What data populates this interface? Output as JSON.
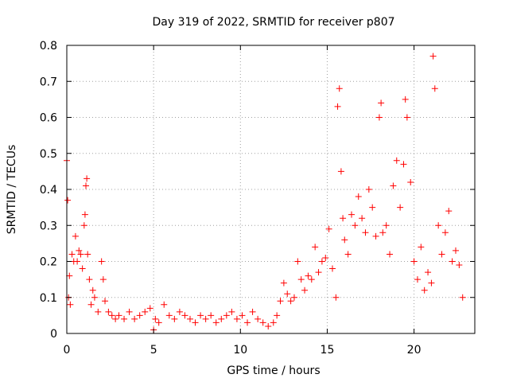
{
  "chart_data": {
    "type": "scatter",
    "title": "Day 319 of 2022, SRMTID for receiver p807",
    "xlabel": "GPS time / hours",
    "ylabel": "SRMTID / TECUs",
    "xlim": [
      0,
      23.5
    ],
    "ylim": [
      0,
      0.8
    ],
    "x_ticks": [
      0,
      5,
      10,
      15,
      20
    ],
    "x_tick_labels": [
      "0",
      "5",
      "10",
      "15",
      "20"
    ],
    "y_ticks": [
      0,
      0.1,
      0.2,
      0.3,
      0.4,
      0.5,
      0.6,
      0.7,
      0.8
    ],
    "y_tick_labels": [
      "0",
      "0.1",
      "0.2",
      "0.3",
      "0.4",
      "0.5",
      "0.6",
      "0.7",
      "0.8"
    ],
    "grid": true,
    "marker": "+",
    "color": "#ff0000",
    "series": [
      {
        "name": "SRMTID",
        "x": [
          0.0,
          0.05,
          0.1,
          0.15,
          0.2,
          0.3,
          0.4,
          0.5,
          0.6,
          0.7,
          0.8,
          0.9,
          1.0,
          1.05,
          1.1,
          1.15,
          1.2,
          1.3,
          1.4,
          1.5,
          1.6,
          1.8,
          2.0,
          2.1,
          2.2,
          2.4,
          2.6,
          2.8,
          3.0,
          3.3,
          3.6,
          3.9,
          4.2,
          4.5,
          4.8,
          5.0,
          5.1,
          5.3,
          5.6,
          5.9,
          6.2,
          6.5,
          6.8,
          7.1,
          7.4,
          7.7,
          8.0,
          8.3,
          8.6,
          8.9,
          9.2,
          9.5,
          9.8,
          10.1,
          10.4,
          10.7,
          11.0,
          11.3,
          11.6,
          11.9,
          12.1,
          12.3,
          12.5,
          12.7,
          12.9,
          13.1,
          13.3,
          13.5,
          13.7,
          13.9,
          14.1,
          14.3,
          14.5,
          14.7,
          14.9,
          15.1,
          15.3,
          15.5,
          15.6,
          15.7,
          15.8,
          15.9,
          16.0,
          16.2,
          16.4,
          16.6,
          16.8,
          17.0,
          17.2,
          17.4,
          17.6,
          17.8,
          18.0,
          18.1,
          18.2,
          18.4,
          18.6,
          18.8,
          19.0,
          19.2,
          19.4,
          19.5,
          19.6,
          19.8,
          20.0,
          20.2,
          20.4,
          20.6,
          20.8,
          21.0,
          21.1,
          21.2,
          21.4,
          21.6,
          21.8,
          22.0,
          22.2,
          22.4,
          22.6,
          22.8
        ],
        "y": [
          0.48,
          0.37,
          0.1,
          0.16,
          0.08,
          0.22,
          0.2,
          0.27,
          0.2,
          0.23,
          0.22,
          0.18,
          0.3,
          0.33,
          0.41,
          0.43,
          0.22,
          0.15,
          0.08,
          0.12,
          0.1,
          0.06,
          0.2,
          0.15,
          0.09,
          0.06,
          0.05,
          0.04,
          0.05,
          0.04,
          0.06,
          0.04,
          0.05,
          0.06,
          0.07,
          0.01,
          0.04,
          0.03,
          0.08,
          0.05,
          0.04,
          0.06,
          0.05,
          0.04,
          0.03,
          0.05,
          0.04,
          0.05,
          0.03,
          0.04,
          0.05,
          0.06,
          0.04,
          0.05,
          0.03,
          0.06,
          0.04,
          0.03,
          0.02,
          0.03,
          0.05,
          0.09,
          0.14,
          0.11,
          0.09,
          0.1,
          0.2,
          0.15,
          0.12,
          0.16,
          0.15,
          0.24,
          0.17,
          0.2,
          0.21,
          0.29,
          0.18,
          0.1,
          0.63,
          0.68,
          0.45,
          0.32,
          0.26,
          0.22,
          0.33,
          0.3,
          0.38,
          0.32,
          0.28,
          0.4,
          0.35,
          0.27,
          0.6,
          0.64,
          0.28,
          0.3,
          0.22,
          0.41,
          0.48,
          0.35,
          0.47,
          0.65,
          0.6,
          0.42,
          0.2,
          0.15,
          0.24,
          0.12,
          0.17,
          0.14,
          0.77,
          0.68,
          0.3,
          0.22,
          0.28,
          0.34,
          0.2,
          0.23,
          0.19,
          0.1
        ]
      }
    ]
  }
}
